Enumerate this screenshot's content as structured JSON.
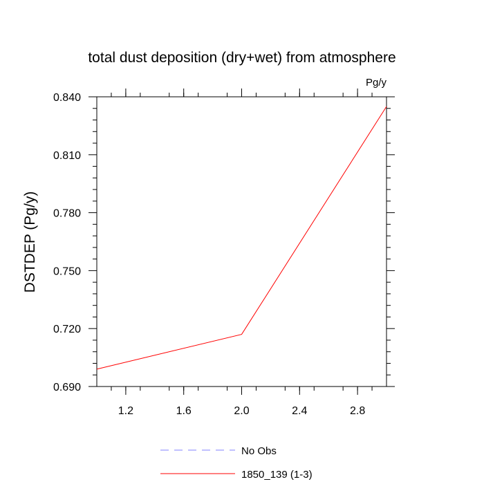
{
  "chart_data": {
    "type": "line",
    "title": "total dust deposition (dry+wet) from atmosphere",
    "units_label": "Pg/y",
    "ylabel": "DSTDEP  (Pg/y)",
    "xlabel": "",
    "xlim": [
      1.0,
      3.0
    ],
    "ylim": [
      0.69,
      0.84
    ],
    "x_ticks": [
      1.2,
      1.6,
      2.0,
      2.4,
      2.8
    ],
    "x_tick_labels": [
      "1.2",
      "1.6",
      "2.0",
      "2.4",
      "2.8"
    ],
    "y_ticks": [
      0.69,
      0.72,
      0.75,
      0.78,
      0.81,
      0.84
    ],
    "y_tick_labels": [
      "0.690",
      "0.720",
      "0.750",
      "0.780",
      "0.810",
      "0.840"
    ],
    "grid": false,
    "legend_position": "bottom-center",
    "series": [
      {
        "name": "No Obs",
        "x": [],
        "values": [],
        "color": "#8080ff",
        "dash": "dashed"
      },
      {
        "name": "1850_139 (1-3)",
        "x": [
          1.0,
          2.0,
          3.0
        ],
        "values": [
          0.699,
          0.717,
          0.835
        ],
        "color": "#ff0000",
        "dash": "solid"
      }
    ]
  }
}
